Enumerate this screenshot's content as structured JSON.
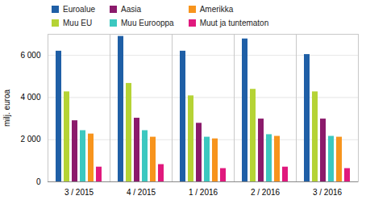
{
  "chart_data": {
    "type": "bar",
    "categories": [
      "3 / 2015",
      "4 / 2015",
      "1 / 2016",
      "2 / 2016",
      "3 / 2016"
    ],
    "series": [
      {
        "name": "Euroalue",
        "color": "#1f5fa6",
        "values": [
          6200,
          6900,
          6200,
          6780,
          6040
        ]
      },
      {
        "name": "Muu EU",
        "color": "#b5d335",
        "values": [
          4270,
          4670,
          4080,
          4390,
          4270
        ]
      },
      {
        "name": "Aasia",
        "color": "#8b1a6b",
        "values": [
          2900,
          3020,
          2780,
          2980,
          2980
        ]
      },
      {
        "name": "Muu Eurooppa",
        "color": "#3cc8c0",
        "values": [
          2430,
          2430,
          2120,
          2240,
          2160
        ]
      },
      {
        "name": "Amerikka",
        "color": "#f7941d",
        "values": [
          2270,
          2120,
          2040,
          2160,
          2120
        ]
      },
      {
        "name": "Muut ja tuntematon",
        "color": "#e0197d",
        "values": [
          700,
          820,
          630,
          700,
          630
        ]
      }
    ],
    "ylabel": "milj. euroa",
    "ylim": [
      0,
      7000
    ],
    "yticks": [
      0,
      {
        "value": 2000,
        "label": "2 000"
      },
      {
        "value": 4000,
        "label": "4 000"
      },
      {
        "value": 6000,
        "label": "6 000"
      }
    ],
    "grid": true,
    "legend": "top-left"
  }
}
